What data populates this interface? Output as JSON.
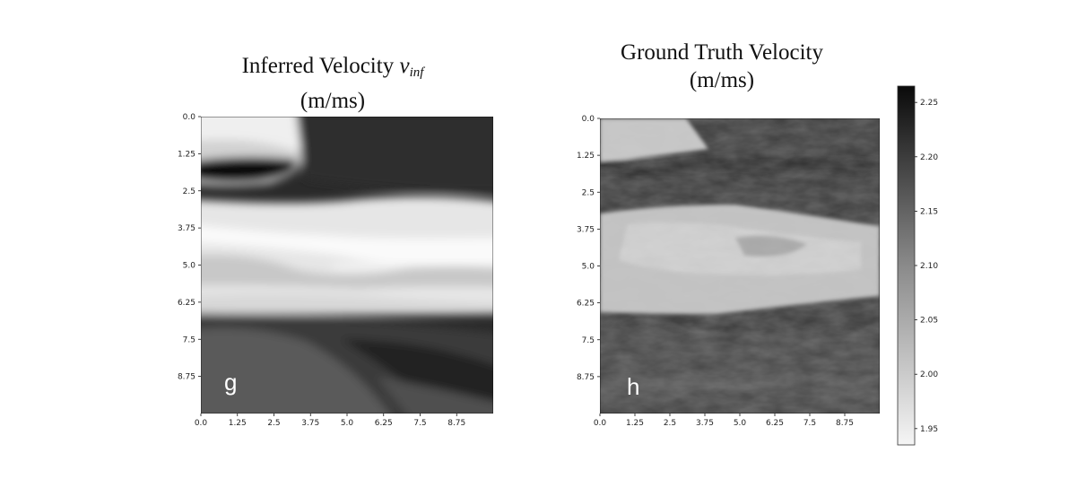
{
  "panels": {
    "left": {
      "title_main": "Inferred Velocity ",
      "title_var": "v",
      "title_sub": "inf",
      "title_units": "(m/ms)",
      "letter": "g"
    },
    "right": {
      "title_main": "Ground Truth Velocity",
      "title_units": "(m/ms)",
      "letter": "h"
    }
  },
  "colors": {
    "cmap_low": "#f4f4f4",
    "cmap_high": "#0a0a0a",
    "axis": "#000000"
  },
  "chart_data": [
    {
      "type": "heatmap",
      "title": "Inferred Velocity v_inf (m/ms)",
      "colormap": "gray_r",
      "x_ticks": [
        "0.0",
        "1.25",
        "2.5",
        "3.75",
        "5.0",
        "6.25",
        "7.5",
        "8.75"
      ],
      "y_ticks": [
        "0.0",
        "1.25",
        "2.5",
        "3.75",
        "5.0",
        "6.25",
        "7.5",
        "8.75"
      ],
      "xlim": [
        0,
        10
      ],
      "ylim": [
        10,
        0
      ],
      "description_bands": [
        {
          "y_range": [
            0,
            1.3
          ],
          "level": "low (light) at left, high (dark) at right"
        },
        {
          "y_range": [
            1.3,
            2.7
          ],
          "level": "high (dark)"
        },
        {
          "y_range": [
            2.7,
            6.6
          ],
          "level": "low (light)"
        },
        {
          "y_range": [
            6.6,
            10
          ],
          "level": "high (dark)"
        }
      ]
    },
    {
      "type": "heatmap",
      "title": "Ground Truth Velocity (m/ms)",
      "colormap": "gray_r",
      "x_ticks": [
        "0.0",
        "1.25",
        "2.5",
        "3.75",
        "5.0",
        "6.25",
        "7.5",
        "8.75"
      ],
      "y_ticks": [
        "0.0",
        "1.25",
        "2.5",
        "3.75",
        "5.0",
        "6.25",
        "7.5",
        "8.75"
      ],
      "xlim": [
        0,
        10
      ],
      "ylim": [
        10,
        0
      ],
      "colorbar": {
        "ticks": [
          "1.95",
          "2.00",
          "2.05",
          "2.10",
          "2.15",
          "2.20",
          "2.25"
        ],
        "range": [
          1.935,
          2.265
        ]
      }
    }
  ]
}
